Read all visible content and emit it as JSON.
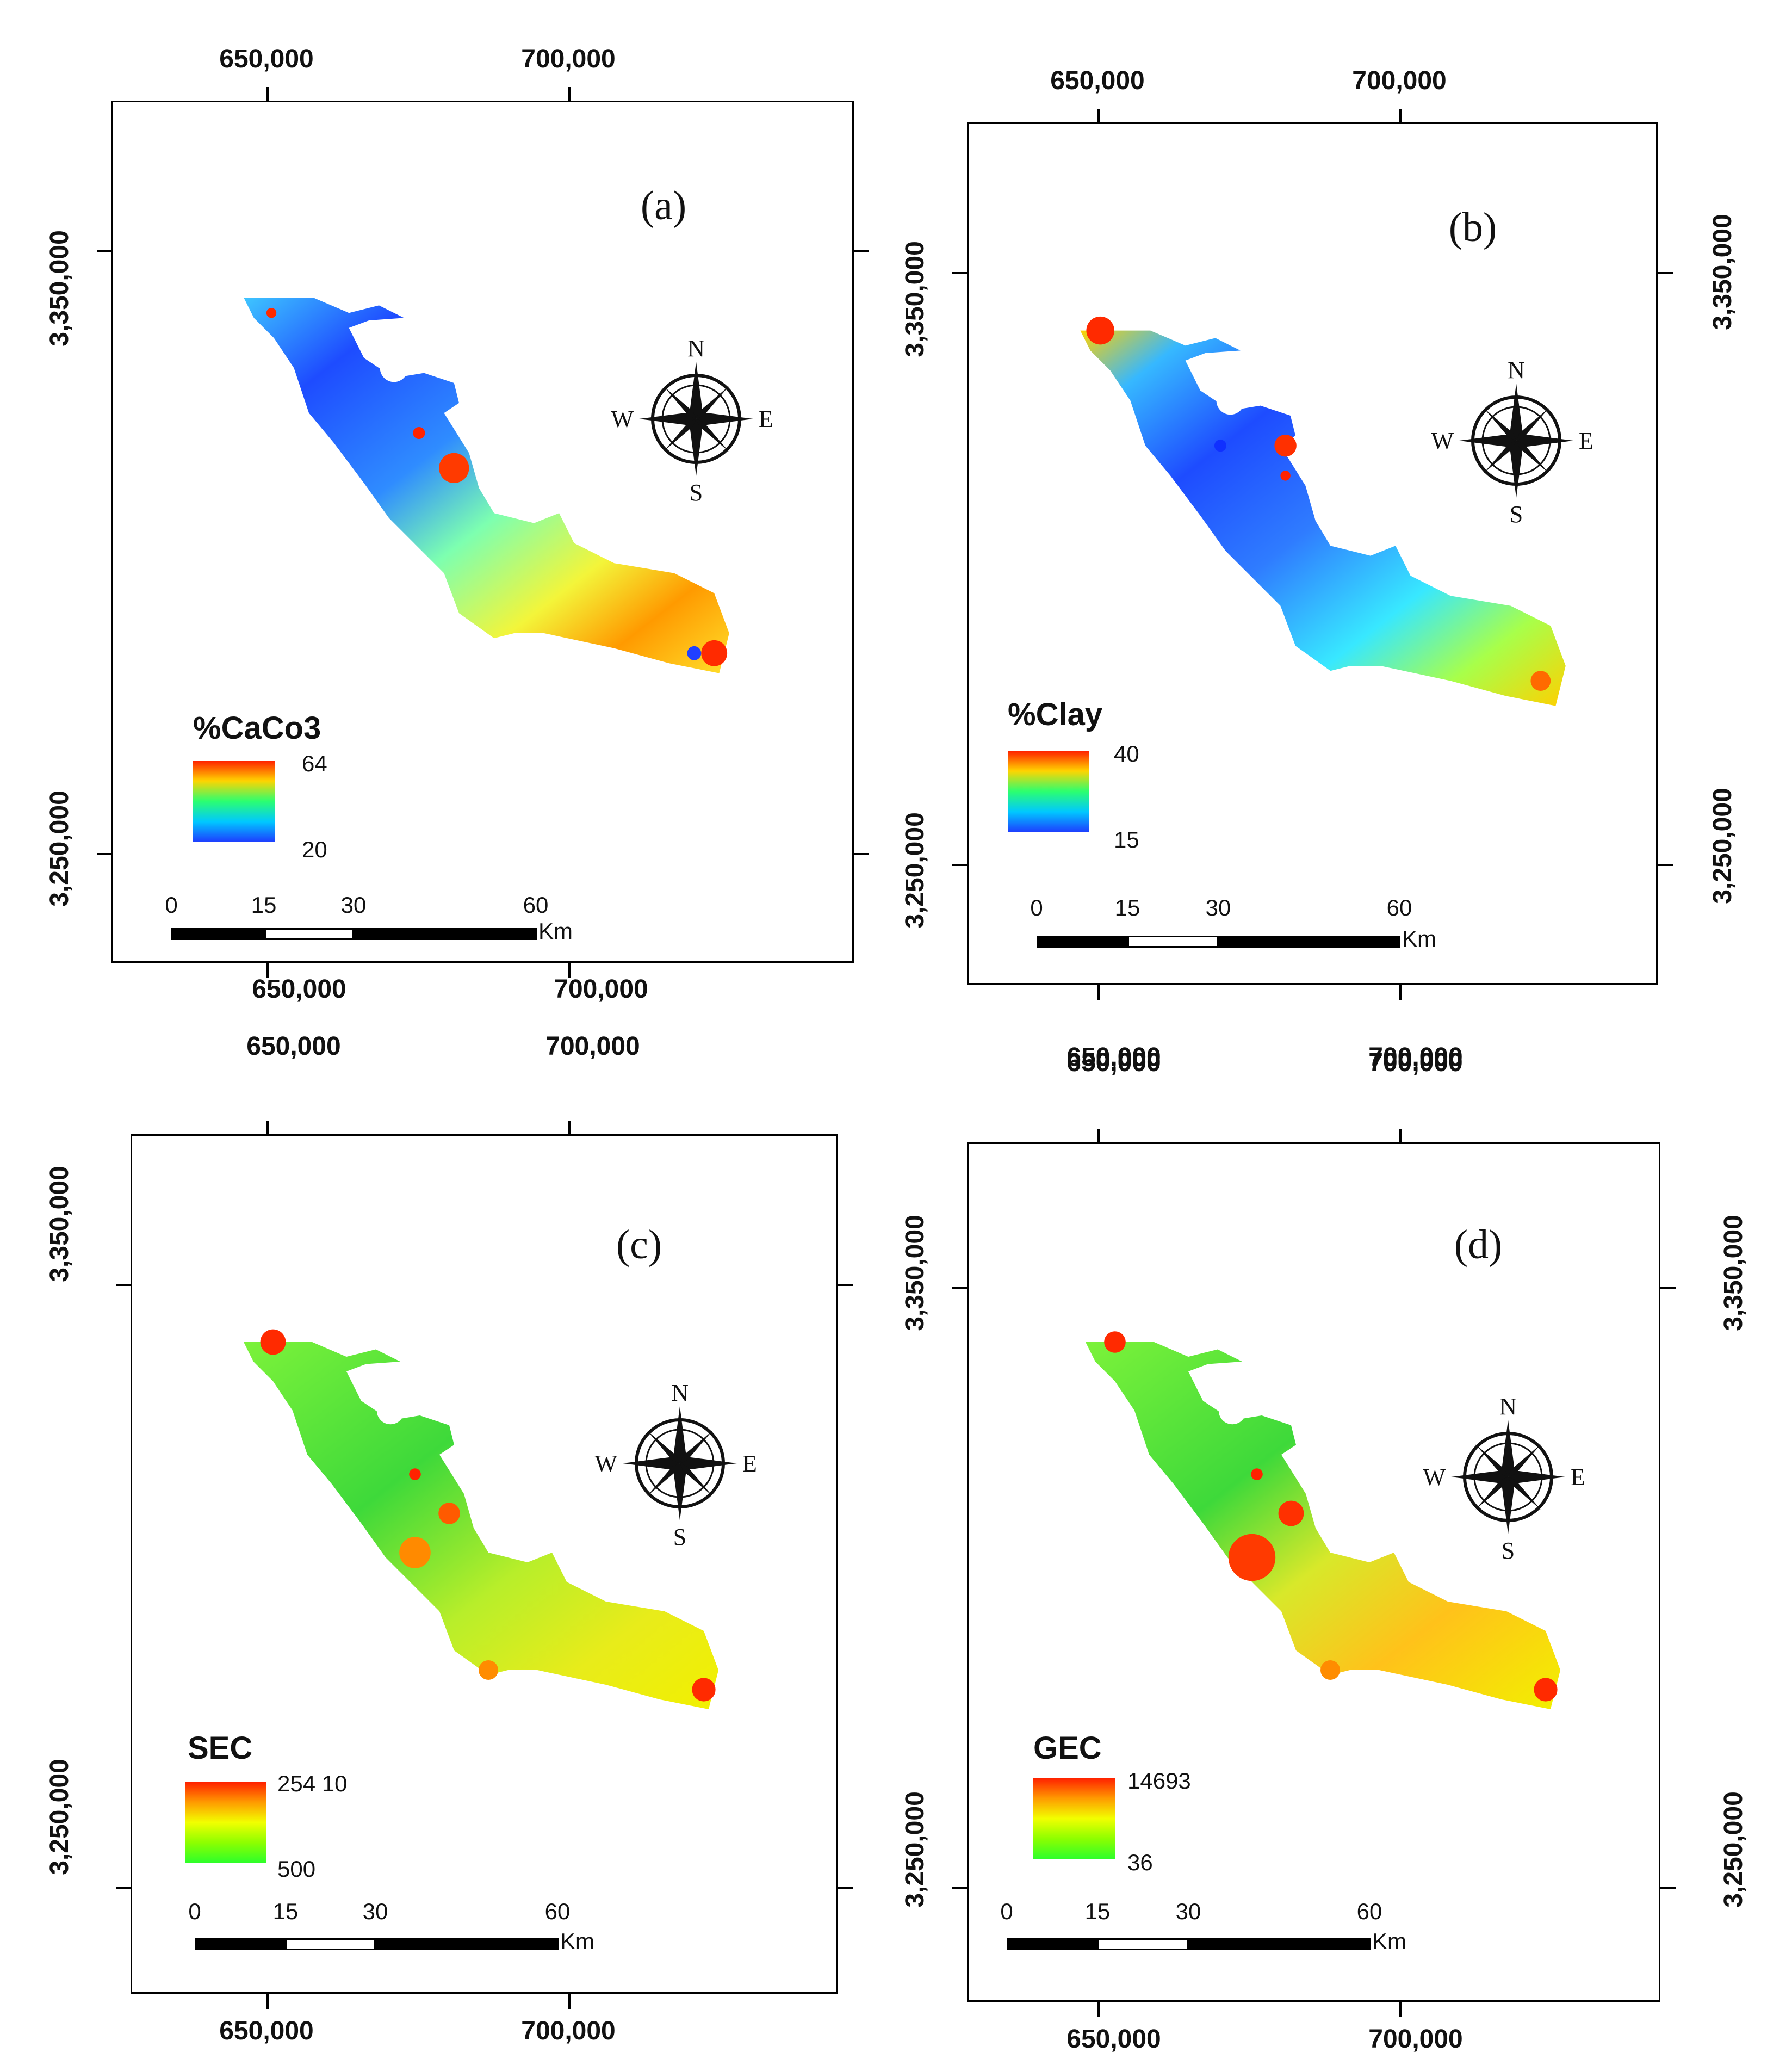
{
  "panels": [
    {
      "label": "(a)",
      "legend": {
        "title": "%CaCo3",
        "max": "64",
        "min": "20",
        "colors": [
          "#ff1e00",
          "#ffd400",
          "#2bff70",
          "#00c8ff",
          "#1e3cff"
        ]
      },
      "coords": {
        "x1": "650,000",
        "x2": "700,000",
        "y1": "3,350,000",
        "y2": "3,250,000"
      },
      "scalebar": {
        "ticks": [
          "0",
          "15",
          "30",
          "60"
        ],
        "unit": "Km"
      },
      "compass": {
        "n": "N",
        "s": "S",
        "e": "E",
        "w": "W"
      }
    },
    {
      "label": "(b)",
      "legend": {
        "title": "%Clay",
        "max": "40",
        "min": "15",
        "colors": [
          "#ff1e00",
          "#ffd400",
          "#2bff70",
          "#00c8ff",
          "#1e3cff"
        ]
      },
      "coords": {
        "x1": "650,000",
        "x2": "700,000",
        "y1": "3,350,000",
        "y2": "3,250,000"
      },
      "scalebar": {
        "ticks": [
          "0",
          "15",
          "30",
          "60"
        ],
        "unit": "Km"
      },
      "compass": {
        "n": "N",
        "s": "S",
        "e": "E",
        "w": "W"
      }
    },
    {
      "label": "(c)",
      "legend": {
        "title": "SEC",
        "max": "254 10",
        "min": "500",
        "colors": [
          "#ff1e00",
          "#ff9900",
          "#f2ff00",
          "#8cff00",
          "#2bff2b"
        ]
      },
      "coords": {
        "x1": "650,000",
        "x2": "700,000",
        "y1": "3,350,000",
        "y2": "3,250,000"
      },
      "scalebar": {
        "ticks": [
          "0",
          "15",
          "30",
          "60"
        ],
        "unit": "Km"
      },
      "compass": {
        "n": "N",
        "s": "S",
        "e": "E",
        "w": "W"
      }
    },
    {
      "label": "(d)",
      "legend": {
        "title": "GEC",
        "max": "14693",
        "min": "36",
        "colors": [
          "#ff1e00",
          "#ff9900",
          "#f2ff00",
          "#8cff00",
          "#2bff2b"
        ]
      },
      "coords": {
        "x1": "650,000",
        "x2": "700,000",
        "y1": "3,350,000",
        "y2": "3,250,000"
      },
      "scalebar": {
        "ticks": [
          "0",
          "15",
          "30",
          "60"
        ],
        "unit": "Km"
      },
      "compass": {
        "n": "N",
        "s": "S",
        "e": "E",
        "w": "W"
      }
    }
  ]
}
